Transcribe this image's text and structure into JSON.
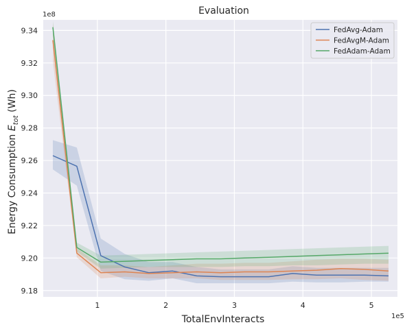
{
  "chart_data": {
    "type": "line",
    "title": "Evaluation",
    "xlabel": "TotalEnvInteracts",
    "ylabel_main": "Energy Consumption ",
    "ylabel_symbol": "E",
    "ylabel_sub": "tot",
    "ylabel_unit": " (Wh)",
    "x_multiplier_label": "1e5",
    "y_multiplier_label": "1e8",
    "xlim": [
      0.21,
      5.38
    ],
    "ylim": [
      9.1761,
      9.3465
    ],
    "xticks": [
      1,
      2,
      3,
      4,
      5
    ],
    "yticks": [
      9.18,
      9.2,
      9.22,
      9.24,
      9.26,
      9.28,
      9.3,
      9.32,
      9.34
    ],
    "ytick_labels": [
      "9.18",
      "9.20",
      "9.22",
      "9.24",
      "9.26",
      "9.28",
      "9.30",
      "9.32",
      "9.34"
    ],
    "grid": true,
    "legend_position": "top-right",
    "series": [
      {
        "name": "FedAvg-Adam",
        "color": "#4c72b0",
        "x": [
          0.35,
          0.7,
          1.05,
          1.4,
          1.75,
          2.1,
          2.45,
          2.8,
          3.15,
          3.5,
          3.85,
          4.2,
          4.55,
          4.9,
          5.25
        ],
        "y": [
          9.263,
          9.2565,
          9.2015,
          9.1945,
          9.191,
          9.192,
          9.189,
          9.1885,
          9.1885,
          9.1885,
          9.1905,
          9.1895,
          9.1895,
          9.1895,
          9.189
        ],
        "lower": [
          9.2545,
          9.2445,
          9.192,
          9.187,
          9.186,
          9.1875,
          9.1845,
          9.1845,
          9.1845,
          9.1845,
          9.1855,
          9.185,
          9.185,
          9.1855,
          9.1855
        ],
        "upper": [
          9.2725,
          9.268,
          9.212,
          9.2025,
          9.1975,
          9.1975,
          9.1945,
          9.193,
          9.193,
          9.193,
          9.195,
          9.194,
          9.194,
          9.194,
          9.194
        ]
      },
      {
        "name": "FedAvgM-Adam",
        "color": "#dd8452",
        "x": [
          0.35,
          0.7,
          1.05,
          1.4,
          1.75,
          2.1,
          2.45,
          2.8,
          3.15,
          3.5,
          3.85,
          4.2,
          4.55,
          4.9,
          5.25
        ],
        "y": [
          9.334,
          9.203,
          9.191,
          9.1915,
          9.1905,
          9.191,
          9.1915,
          9.191,
          9.1915,
          9.1915,
          9.192,
          9.1925,
          9.1935,
          9.193,
          9.192
        ],
        "lower": [
          9.321,
          9.2005,
          9.1875,
          9.1885,
          9.1875,
          9.1875,
          9.1875,
          9.1865,
          9.1865,
          9.1865,
          9.187,
          9.187,
          9.1875,
          9.1865,
          9.186
        ],
        "upper": [
          9.345,
          9.206,
          9.1955,
          9.1955,
          9.1945,
          9.1955,
          9.1965,
          9.1965,
          9.197,
          9.197,
          9.198,
          9.199,
          9.1995,
          9.1995,
          9.199
        ]
      },
      {
        "name": "FedAdam-Adam",
        "color": "#55a868",
        "x": [
          0.35,
          0.7,
          1.05,
          1.4,
          1.75,
          2.1,
          2.45,
          2.8,
          3.15,
          3.5,
          3.85,
          4.2,
          4.55,
          4.9,
          5.25
        ],
        "y": [
          9.342,
          9.2065,
          9.1975,
          9.198,
          9.1985,
          9.199,
          9.1995,
          9.1995,
          9.2,
          9.2005,
          9.201,
          9.2015,
          9.202,
          9.2025,
          9.203
        ],
        "lower": [
          9.337,
          9.204,
          9.1935,
          9.194,
          9.1945,
          9.1945,
          9.1945,
          9.1945,
          9.195,
          9.195,
          9.1955,
          9.1955,
          9.196,
          9.1965,
          9.1965
        ],
        "upper": [
          9.346,
          9.2095,
          9.2015,
          9.202,
          9.2025,
          9.203,
          9.2035,
          9.204,
          9.2045,
          9.205,
          9.2055,
          9.206,
          9.2065,
          9.207,
          9.2075
        ]
      }
    ]
  }
}
